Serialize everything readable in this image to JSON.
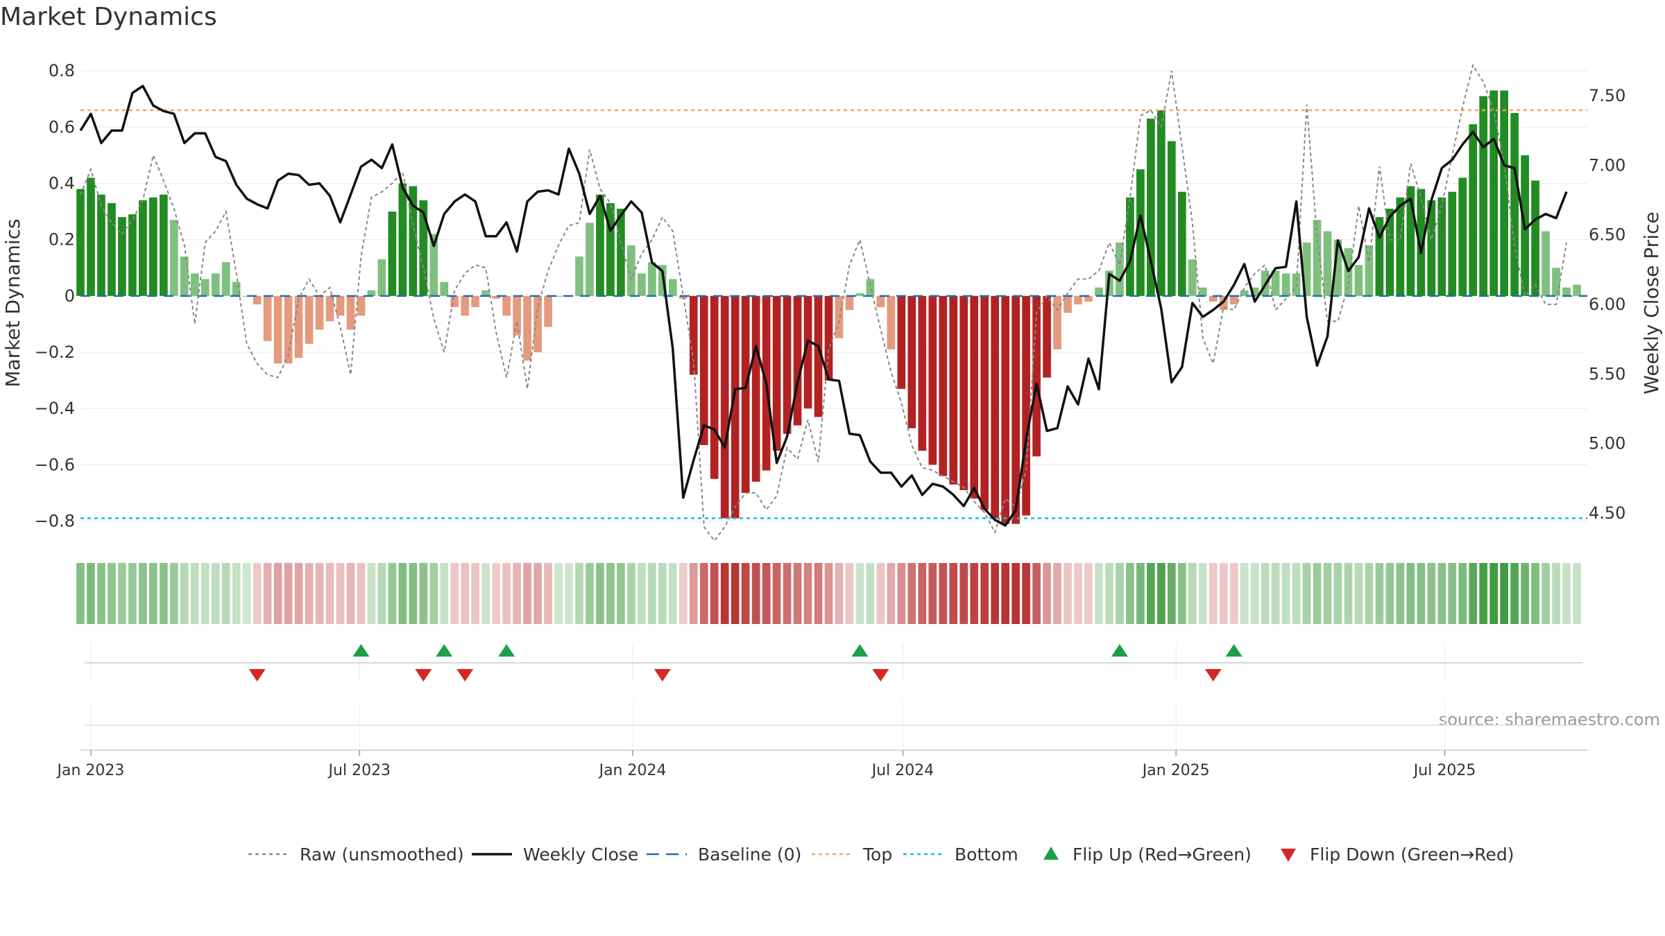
{
  "title": "Market Dynamics",
  "source": "source: sharemaestro.com",
  "colors": {
    "strong_green": "#228b22",
    "light_green": "#7fc07f",
    "strong_red": "#b22222",
    "light_red": "#e59a7e",
    "raw_line": "#888888",
    "close_line": "#111111",
    "baseline": "#1f6fb2",
    "top": "#f4a460",
    "bottom": "#17becf",
    "flip_up": "#1e9e47",
    "flip_down": "#d62728"
  },
  "chart_data": {
    "type": "bar",
    "title": "Market Dynamics",
    "ylabel": "Market Dynamics",
    "y2label": "Weekly Close Price",
    "ylim": [
      -0.87,
      0.82
    ],
    "y2lim": [
      4.3,
      7.72
    ],
    "yticks": [
      0.8,
      0.6,
      0.4,
      0.2,
      0,
      -0.2,
      -0.4,
      -0.6,
      -0.8
    ],
    "ytick_labels": [
      "0.8",
      "0.6",
      "0.4",
      "0.2",
      "0",
      "−0.2",
      "−0.4",
      "−0.6",
      "−0.8"
    ],
    "y2ticks": [
      7.5,
      7.0,
      6.5,
      6.0,
      5.5,
      5.0,
      4.5
    ],
    "y2tick_labels": [
      "7.50",
      "7.00",
      "6.50",
      "6.00",
      "5.50",
      "5.00",
      "4.50"
    ],
    "xticks": [
      {
        "date": "2023-01-01",
        "label": "Jan 2023"
      },
      {
        "date": "2023-07-01",
        "label": "Jul 2023"
      },
      {
        "date": "2024-01-01",
        "label": "Jan 2024"
      },
      {
        "date": "2024-07-01",
        "label": "Jul 2024"
      },
      {
        "date": "2025-01-01",
        "label": "Jan 2025"
      },
      {
        "date": "2025-07-01",
        "label": "Jul 2025"
      }
    ],
    "date_range": [
      "2022-12-25",
      "2025-10-05"
    ],
    "top_level": 0.66,
    "bottom_level": -0.79,
    "baseline_level": 0,
    "grid": true,
    "legend_position": "bottom-center",
    "series": [
      {
        "name": "Market Dynamics",
        "type": "bar",
        "start_date": "2022-12-25",
        "interval_days": 7,
        "values": [
          0.38,
          0.42,
          0.36,
          0.33,
          0.28,
          0.29,
          0.34,
          0.35,
          0.36,
          0.27,
          0.14,
          0.08,
          0.06,
          0.08,
          0.12,
          0.05,
          0.0,
          -0.03,
          -0.16,
          -0.24,
          -0.24,
          -0.22,
          -0.17,
          -0.12,
          -0.09,
          -0.07,
          -0.12,
          -0.07,
          0.02,
          0.13,
          0.3,
          0.4,
          0.39,
          0.34,
          0.22,
          0.05,
          -0.04,
          -0.07,
          -0.04,
          0.02,
          -0.01,
          -0.07,
          -0.14,
          -0.23,
          -0.2,
          -0.11,
          0.0,
          0.0,
          0.14,
          0.26,
          0.36,
          0.33,
          0.31,
          0.18,
          0.08,
          0.12,
          0.11,
          0.06,
          -0.01,
          -0.28,
          -0.53,
          -0.65,
          -0.79,
          -0.79,
          -0.7,
          -0.66,
          -0.62,
          -0.55,
          -0.49,
          -0.46,
          -0.4,
          -0.43,
          -0.3,
          -0.15,
          -0.05,
          0.01,
          0.06,
          -0.04,
          -0.19,
          -0.33,
          -0.47,
          -0.55,
          -0.6,
          -0.64,
          -0.67,
          -0.69,
          -0.72,
          -0.76,
          -0.79,
          -0.81,
          -0.81,
          -0.78,
          -0.57,
          -0.29,
          -0.19,
          -0.06,
          -0.03,
          -0.02,
          0.03,
          0.09,
          0.19,
          0.35,
          0.45,
          0.63,
          0.66,
          0.55,
          0.37,
          0.13,
          0.03,
          -0.02,
          -0.05,
          -0.03,
          0.02,
          0.03,
          0.09,
          0.09,
          0.08,
          0.08,
          0.19,
          0.27,
          0.23,
          0.2,
          0.17,
          0.11,
          0.18,
          0.28,
          0.31,
          0.35,
          0.39,
          0.38,
          0.34,
          0.35,
          0.37,
          0.42,
          0.61,
          0.71,
          0.73,
          0.73,
          0.65,
          0.5,
          0.41,
          0.23,
          0.1,
          0.03,
          0.04
        ]
      },
      {
        "name": "Raw (unsmoothed)",
        "type": "line",
        "start_date": "2022-12-25",
        "interval_days": 7,
        "values": [
          0.36,
          0.45,
          0.32,
          0.26,
          0.22,
          0.27,
          0.34,
          0.5,
          0.41,
          0.31,
          0.18,
          -0.1,
          0.19,
          0.23,
          0.3,
          0.08,
          -0.17,
          -0.24,
          -0.28,
          -0.29,
          -0.21,
          -0.01,
          0.06,
          0.0,
          0.03,
          -0.11,
          -0.28,
          0.14,
          0.35,
          0.37,
          0.4,
          0.44,
          0.25,
          0.1,
          -0.08,
          -0.2,
          0.02,
          0.08,
          0.11,
          0.1,
          -0.13,
          -0.29,
          -0.09,
          -0.33,
          -0.04,
          0.09,
          0.18,
          0.25,
          0.26,
          0.52,
          0.38,
          0.33,
          0.19,
          0.06,
          0.15,
          0.2,
          0.28,
          0.23,
          0.0,
          -0.23,
          -0.82,
          -0.87,
          -0.82,
          -0.75,
          -0.7,
          -0.7,
          -0.76,
          -0.71,
          -0.54,
          -0.58,
          -0.44,
          -0.59,
          -0.19,
          -0.09,
          0.11,
          0.2,
          0.04,
          -0.12,
          -0.27,
          -0.38,
          -0.53,
          -0.61,
          -0.62,
          -0.64,
          -0.66,
          -0.68,
          -0.73,
          -0.77,
          -0.84,
          -0.72,
          -0.75,
          -0.62,
          -0.06,
          0.0,
          -0.05,
          0.01,
          0.06,
          0.06,
          0.09,
          0.19,
          0.11,
          0.35,
          0.64,
          0.66,
          0.6,
          0.8,
          0.53,
          0.26,
          -0.15,
          -0.24,
          -0.04,
          -0.05,
          0.03,
          0.08,
          0.11,
          -0.05,
          -0.01,
          0.03,
          0.68,
          0.21,
          -0.09,
          -0.09,
          0.04,
          0.32,
          0.12,
          0.46,
          0.2,
          0.2,
          0.47,
          0.35,
          0.2,
          0.32,
          0.5,
          0.67,
          0.82,
          0.76,
          0.66,
          0.47,
          0.18,
          0.0,
          0.04,
          -0.03,
          -0.03,
          0.19
        ]
      },
      {
        "name": "Weekly Close",
        "type": "line",
        "axis": "right",
        "start_date": "2022-12-25",
        "interval_days": 7,
        "values": [
          7.25,
          7.37,
          7.16,
          7.25,
          7.25,
          7.52,
          7.57,
          7.43,
          7.39,
          7.37,
          7.16,
          7.23,
          7.23,
          7.06,
          7.03,
          6.86,
          6.76,
          6.72,
          6.69,
          6.89,
          6.94,
          6.93,
          6.86,
          6.87,
          6.78,
          6.59,
          6.79,
          6.99,
          7.04,
          6.98,
          7.15,
          6.84,
          6.71,
          6.66,
          6.42,
          6.65,
          6.74,
          6.79,
          6.74,
          6.49,
          6.49,
          6.59,
          6.38,
          6.74,
          6.81,
          6.82,
          6.79,
          7.12,
          6.94,
          6.65,
          6.78,
          6.53,
          6.64,
          6.74,
          6.66,
          6.3,
          6.24,
          5.68,
          4.61,
          4.88,
          5.13,
          5.1,
          4.97,
          5.39,
          5.4,
          5.7,
          5.43,
          4.86,
          5.05,
          5.44,
          5.74,
          5.7,
          5.46,
          5.45,
          5.07,
          5.06,
          4.87,
          4.79,
          4.79,
          4.69,
          4.77,
          4.63,
          4.71,
          4.69,
          4.63,
          4.55,
          4.68,
          4.53,
          4.45,
          4.41,
          4.52,
          5.03,
          5.43,
          5.09,
          5.11,
          5.41,
          5.28,
          5.61,
          5.39,
          6.22,
          6.17,
          6.31,
          6.64,
          6.31,
          5.97,
          5.44,
          5.55,
          6.01,
          5.91,
          5.96,
          6.02,
          6.14,
          6.29,
          6.02,
          6.14,
          6.26,
          6.27,
          6.74,
          5.91,
          5.56,
          5.77,
          6.46,
          6.24,
          6.34,
          6.69,
          6.48,
          6.63,
          6.71,
          6.76,
          6.37,
          6.75,
          6.98,
          7.04,
          7.15,
          7.24,
          7.13,
          7.19,
          7.0,
          6.98,
          6.54,
          6.61,
          6.65,
          6.62,
          6.81
        ]
      },
      {
        "name": "Baseline (0)",
        "type": "hline",
        "value": 0
      },
      {
        "name": "Top",
        "type": "hline",
        "value": 0.66
      },
      {
        "name": "Bottom",
        "type": "hline",
        "value": -0.79
      },
      {
        "name": "Flip Up (Red→Green)",
        "type": "marker",
        "dates": [
          "2023-07-02",
          "2023-08-27",
          "2023-10-08",
          "2024-06-02",
          "2024-11-24",
          "2025-02-09"
        ]
      },
      {
        "name": "Flip Down (Green→Red)",
        "type": "marker",
        "dates": [
          "2023-04-23",
          "2023-08-13",
          "2023-09-10",
          "2024-01-21",
          "2024-06-16",
          "2025-01-26"
        ]
      }
    ]
  },
  "legend": [
    {
      "label": "Raw (unsmoothed)",
      "kind": "dotted",
      "color": "#888888"
    },
    {
      "label": "Weekly Close",
      "kind": "solid",
      "color": "#111111"
    },
    {
      "label": "Baseline (0)",
      "kind": "dashed",
      "color": "#1f6fb2"
    },
    {
      "label": "Top",
      "kind": "dotted",
      "color": "#f4a460"
    },
    {
      "label": "Bottom",
      "kind": "dotted",
      "color": "#17becf"
    },
    {
      "label": "Flip Up (Red→Green)",
      "kind": "up",
      "color": "#1e9e47"
    },
    {
      "label": "Flip Down (Green→Red)",
      "kind": "down",
      "color": "#d62728"
    }
  ]
}
